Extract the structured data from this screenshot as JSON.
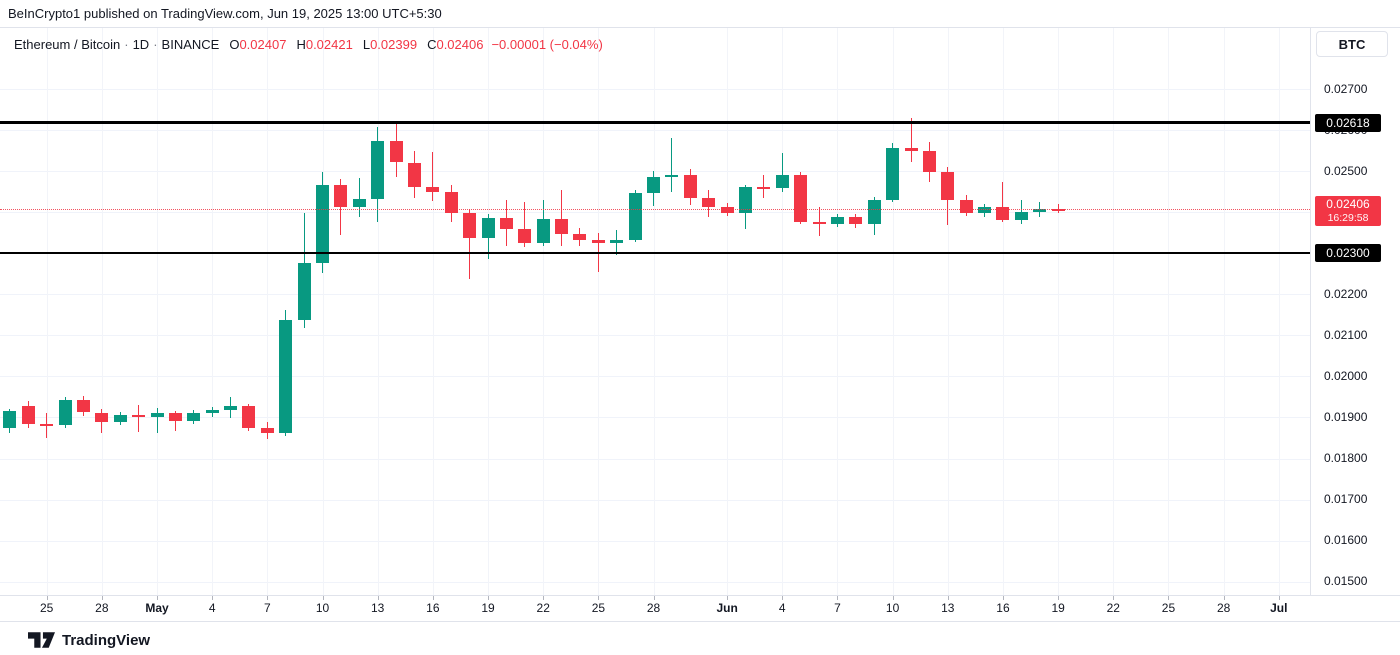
{
  "attribution": {
    "text": "BeInCrypto1 published on TradingView.com, Jun 19, 2025 13:00 UTC+5:30"
  },
  "legend": {
    "symbol": "Ethereum / Bitcoin",
    "separator": "·",
    "interval": "1D",
    "exchange": "BINANCE",
    "ohlc": [
      {
        "label": "O",
        "value": "0.02407"
      },
      {
        "label": "H",
        "value": "0.02421"
      },
      {
        "label": "L",
        "value": "0.02399"
      },
      {
        "label": "C",
        "value": "0.02406"
      }
    ],
    "change": "−0.00001 (−0.04%)"
  },
  "price_axis": {
    "unit_button": "BTC",
    "ticks": [
      {
        "label": "0.02700",
        "value": 0.027
      },
      {
        "label": "0.02600",
        "value": 0.026
      },
      {
        "label": "0.02500",
        "value": 0.025
      },
      {
        "label": "0.02400",
        "value": 0.024
      },
      {
        "label": "0.02300",
        "value": 0.023
      },
      {
        "label": "0.02200",
        "value": 0.022
      },
      {
        "label": "0.02100",
        "value": 0.021
      },
      {
        "label": "0.02000",
        "value": 0.02
      },
      {
        "label": "0.01900",
        "value": 0.019
      },
      {
        "label": "0.01800",
        "value": 0.018
      },
      {
        "label": "0.01700",
        "value": 0.017
      },
      {
        "label": "0.01600",
        "value": 0.016
      },
      {
        "label": "0.01500",
        "value": 0.015
      }
    ]
  },
  "time_axis": {
    "ticks": [
      {
        "label": "25",
        "day": 2
      },
      {
        "label": "28",
        "day": 5
      },
      {
        "label": "May",
        "day": 8,
        "month": true
      },
      {
        "label": "4",
        "day": 11
      },
      {
        "label": "7",
        "day": 14
      },
      {
        "label": "10",
        "day": 17
      },
      {
        "label": "13",
        "day": 20
      },
      {
        "label": "16",
        "day": 23
      },
      {
        "label": "19",
        "day": 26
      },
      {
        "label": "22",
        "day": 29
      },
      {
        "label": "25",
        "day": 32
      },
      {
        "label": "28",
        "day": 35
      },
      {
        "label": "Jun",
        "day": 39,
        "month": true
      },
      {
        "label": "4",
        "day": 42
      },
      {
        "label": "7",
        "day": 45
      },
      {
        "label": "10",
        "day": 48
      },
      {
        "label": "13",
        "day": 51
      },
      {
        "label": "16",
        "day": 54
      },
      {
        "label": "19",
        "day": 57
      },
      {
        "label": "22",
        "day": 60
      },
      {
        "label": "25",
        "day": 63
      },
      {
        "label": "28",
        "day": 66
      },
      {
        "label": "Jul",
        "day": 69,
        "month": true
      }
    ]
  },
  "levels": [
    {
      "label": "0.02618",
      "value": 0.02618
    },
    {
      "label": "0.02300",
      "value": 0.023
    }
  ],
  "last_price": {
    "label": "0.02406",
    "value": 0.02406,
    "countdown": "16:29:58"
  },
  "logo": {
    "text": "TradingView"
  },
  "colors": {
    "up": "#089981",
    "down": "#f23645",
    "accent_red": "#f23645",
    "level_black": "#000000",
    "text_dark": "#131722",
    "grid": "#f0f3fa",
    "border": "#e0e3eb"
  },
  "chart_data": {
    "type": "candlestick",
    "title": "Ethereum / Bitcoin · 1D · BINANCE",
    "ylabel": "BTC",
    "ylim": [
      0.01468,
      0.02849
    ],
    "xrange": [
      "Apr 23, 2025",
      "Jul 1, 2025"
    ],
    "grid": true,
    "legend_position": "top-left",
    "horizontal_levels": [
      0.02618,
      0.023
    ],
    "current_price": 0.02406,
    "candles": [
      {
        "d": "Apr 23",
        "o": 0.01875,
        "h": 0.01921,
        "l": 0.01863,
        "c": 0.01916
      },
      {
        "d": "Apr 24",
        "o": 0.01929,
        "h": 0.01941,
        "l": 0.01874,
        "c": 0.01884
      },
      {
        "d": "Apr 25",
        "o": 0.01884,
        "h": 0.01911,
        "l": 0.0185,
        "c": 0.01879
      },
      {
        "d": "Apr 26",
        "o": 0.01881,
        "h": 0.0195,
        "l": 0.01874,
        "c": 0.01943
      },
      {
        "d": "Apr 27",
        "o": 0.01943,
        "h": 0.01953,
        "l": 0.01904,
        "c": 0.01913
      },
      {
        "d": "Apr 28",
        "o": 0.01911,
        "h": 0.01921,
        "l": 0.01862,
        "c": 0.01889
      },
      {
        "d": "Apr 29",
        "o": 0.01889,
        "h": 0.01914,
        "l": 0.01881,
        "c": 0.01906
      },
      {
        "d": "Apr 30",
        "o": 0.01906,
        "h": 0.0193,
        "l": 0.01865,
        "c": 0.01901
      },
      {
        "d": "May 1",
        "o": 0.01901,
        "h": 0.01922,
        "l": 0.01862,
        "c": 0.0191
      },
      {
        "d": "May 2",
        "o": 0.0191,
        "h": 0.01916,
        "l": 0.01866,
        "c": 0.01892
      },
      {
        "d": "May 3",
        "o": 0.01892,
        "h": 0.01918,
        "l": 0.01885,
        "c": 0.01911
      },
      {
        "d": "May 4",
        "o": 0.01911,
        "h": 0.01926,
        "l": 0.019,
        "c": 0.01918
      },
      {
        "d": "May 5",
        "o": 0.01918,
        "h": 0.0195,
        "l": 0.01898,
        "c": 0.01929
      },
      {
        "d": "May 6",
        "o": 0.01929,
        "h": 0.01934,
        "l": 0.01868,
        "c": 0.01874
      },
      {
        "d": "May 7",
        "o": 0.01874,
        "h": 0.0189,
        "l": 0.01848,
        "c": 0.01861
      },
      {
        "d": "May 8",
        "o": 0.01861,
        "h": 0.02162,
        "l": 0.01855,
        "c": 0.02137
      },
      {
        "d": "May 9",
        "o": 0.02137,
        "h": 0.02398,
        "l": 0.02118,
        "c": 0.02276
      },
      {
        "d": "May 10",
        "o": 0.02276,
        "h": 0.02498,
        "l": 0.02252,
        "c": 0.02466
      },
      {
        "d": "May 11",
        "o": 0.02466,
        "h": 0.02481,
        "l": 0.02345,
        "c": 0.02413
      },
      {
        "d": "May 12",
        "o": 0.02413,
        "h": 0.02483,
        "l": 0.02388,
        "c": 0.02431
      },
      {
        "d": "May 13",
        "o": 0.02431,
        "h": 0.02607,
        "l": 0.02376,
        "c": 0.02574
      },
      {
        "d": "May 14",
        "o": 0.02574,
        "h": 0.02617,
        "l": 0.02486,
        "c": 0.02523
      },
      {
        "d": "May 15",
        "o": 0.0252,
        "h": 0.02549,
        "l": 0.02434,
        "c": 0.02461
      },
      {
        "d": "May 16",
        "o": 0.02461,
        "h": 0.02547,
        "l": 0.02428,
        "c": 0.0245
      },
      {
        "d": "May 17",
        "o": 0.0245,
        "h": 0.02466,
        "l": 0.02377,
        "c": 0.02397
      },
      {
        "d": "May 18",
        "o": 0.02397,
        "h": 0.02407,
        "l": 0.02238,
        "c": 0.02336
      },
      {
        "d": "May 19",
        "o": 0.02336,
        "h": 0.02396,
        "l": 0.02285,
        "c": 0.02385
      },
      {
        "d": "May 20",
        "o": 0.02385,
        "h": 0.0243,
        "l": 0.02318,
        "c": 0.02358
      },
      {
        "d": "May 21",
        "o": 0.02358,
        "h": 0.02424,
        "l": 0.02315,
        "c": 0.02324
      },
      {
        "d": "May 22",
        "o": 0.02324,
        "h": 0.0243,
        "l": 0.02318,
        "c": 0.02383
      },
      {
        "d": "May 23",
        "o": 0.02383,
        "h": 0.02454,
        "l": 0.02318,
        "c": 0.02348
      },
      {
        "d": "May 24",
        "o": 0.02348,
        "h": 0.02362,
        "l": 0.02318,
        "c": 0.02333
      },
      {
        "d": "May 25",
        "o": 0.02333,
        "h": 0.0235,
        "l": 0.02254,
        "c": 0.02325
      },
      {
        "d": "May 26",
        "o": 0.02325,
        "h": 0.02356,
        "l": 0.02295,
        "c": 0.02333
      },
      {
        "d": "May 27",
        "o": 0.02333,
        "h": 0.02455,
        "l": 0.02328,
        "c": 0.02447
      },
      {
        "d": "May 28",
        "o": 0.02447,
        "h": 0.025,
        "l": 0.02415,
        "c": 0.02485
      },
      {
        "d": "May 29",
        "o": 0.02485,
        "h": 0.02581,
        "l": 0.0245,
        "c": 0.02491
      },
      {
        "d": "May 30",
        "o": 0.02491,
        "h": 0.02505,
        "l": 0.02418,
        "c": 0.02434
      },
      {
        "d": "May 31",
        "o": 0.02434,
        "h": 0.02453,
        "l": 0.02388,
        "c": 0.02413
      },
      {
        "d": "Jun 1",
        "o": 0.02413,
        "h": 0.02422,
        "l": 0.0239,
        "c": 0.02398
      },
      {
        "d": "Jun 2",
        "o": 0.02398,
        "h": 0.02465,
        "l": 0.0236,
        "c": 0.02462
      },
      {
        "d": "Jun 3",
        "o": 0.02462,
        "h": 0.0249,
        "l": 0.02434,
        "c": 0.02458
      },
      {
        "d": "Jun 4",
        "o": 0.02458,
        "h": 0.02543,
        "l": 0.0245,
        "c": 0.0249
      },
      {
        "d": "Jun 5",
        "o": 0.0249,
        "h": 0.02497,
        "l": 0.0237,
        "c": 0.02376
      },
      {
        "d": "Jun 6",
        "o": 0.02376,
        "h": 0.02413,
        "l": 0.02342,
        "c": 0.02372
      },
      {
        "d": "Jun 7",
        "o": 0.02372,
        "h": 0.02395,
        "l": 0.02364,
        "c": 0.02388
      },
      {
        "d": "Jun 8",
        "o": 0.02388,
        "h": 0.02396,
        "l": 0.02362,
        "c": 0.02371
      },
      {
        "d": "Jun 9",
        "o": 0.02371,
        "h": 0.02436,
        "l": 0.02345,
        "c": 0.0243
      },
      {
        "d": "Jun 10",
        "o": 0.0243,
        "h": 0.02568,
        "l": 0.02424,
        "c": 0.02556
      },
      {
        "d": "Jun 11",
        "o": 0.02556,
        "h": 0.0263,
        "l": 0.02522,
        "c": 0.02548
      },
      {
        "d": "Jun 12",
        "o": 0.02548,
        "h": 0.02571,
        "l": 0.02473,
        "c": 0.02498
      },
      {
        "d": "Jun 13",
        "o": 0.02498,
        "h": 0.0251,
        "l": 0.02369,
        "c": 0.0243
      },
      {
        "d": "Jun 14",
        "o": 0.0243,
        "h": 0.02441,
        "l": 0.0239,
        "c": 0.02398
      },
      {
        "d": "Jun 15",
        "o": 0.02398,
        "h": 0.0242,
        "l": 0.02388,
        "c": 0.02413
      },
      {
        "d": "Jun 16",
        "o": 0.02413,
        "h": 0.02473,
        "l": 0.02375,
        "c": 0.02381
      },
      {
        "d": "Jun 17",
        "o": 0.02381,
        "h": 0.0243,
        "l": 0.0237,
        "c": 0.02401
      },
      {
        "d": "Jun 18",
        "o": 0.02401,
        "h": 0.02425,
        "l": 0.02388,
        "c": 0.02407
      },
      {
        "d": "Jun 19",
        "o": 0.02407,
        "h": 0.02421,
        "l": 0.02399,
        "c": 0.02406
      }
    ]
  }
}
